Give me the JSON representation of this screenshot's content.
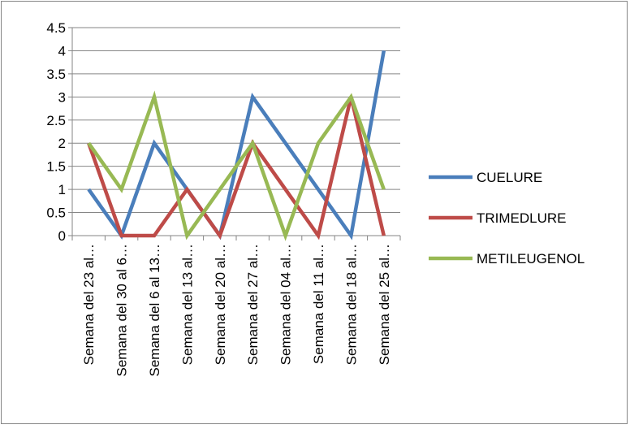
{
  "chart_data": {
    "type": "line",
    "title": "",
    "xlabel": "",
    "ylabel": "",
    "ylim": [
      0,
      4.5
    ],
    "y_ticks": [
      "0",
      "0.5",
      "1",
      "1.5",
      "2",
      "2.5",
      "3",
      "3.5",
      "4",
      "4.5"
    ],
    "grid": "horizontal",
    "legend_position": "right",
    "categories": [
      "Semana del 23 al…",
      "Semana del 30 al 6…",
      "Semana del 6 al 13…",
      "Semana del 13 al…",
      "Semana del 20 al…",
      "Semana del 27 al…",
      "Semana del 04 al…",
      "Semana del 11 al…",
      "Semana del 18 al…",
      "Semana del 25 al…"
    ],
    "series": [
      {
        "name": "CUELURE",
        "color": "#4a7ebb",
        "values": [
          1,
          0,
          2,
          1,
          0,
          3,
          2,
          1,
          0,
          4
        ]
      },
      {
        "name": "TRIMEDLURE",
        "color": "#be4b48",
        "values": [
          2,
          0,
          0,
          1,
          0,
          2,
          1,
          0,
          3,
          0
        ]
      },
      {
        "name": "METILEUGENOL",
        "color": "#98b954",
        "values": [
          2,
          1,
          3,
          0,
          1,
          2,
          0,
          2,
          3,
          1
        ]
      }
    ]
  }
}
